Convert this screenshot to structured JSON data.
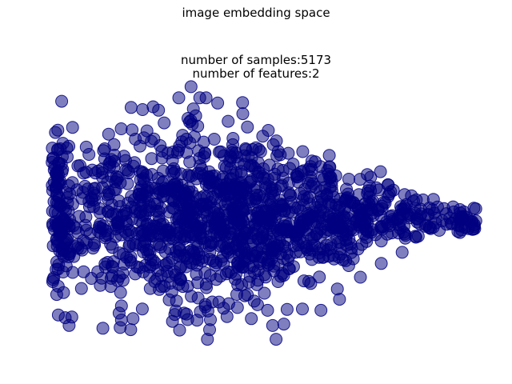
{
  "figure": {
    "suptitle": "image embedding space",
    "title_line1": "number of samples:5173",
    "title_line2": "number of features:2"
  },
  "colors": {
    "marker_fill": "#000080",
    "marker_opacity": 0.5
  },
  "chart_data": {
    "type": "scatter",
    "title": "number of samples:5173\n   number of features:2",
    "suptitle": "image embedding space",
    "n_samples": 5173,
    "n_features": 2,
    "axes_visible": false,
    "grid": false,
    "xlim": [
      -1.0,
      1.0
    ],
    "ylim": [
      -1.0,
      1.0
    ],
    "outliers": [
      {
        "x": -0.86,
        "y": -0.02
      },
      {
        "x": -0.83,
        "y": 0.02
      },
      {
        "x": -0.79,
        "y": 0.13
      },
      {
        "x": -0.75,
        "y": 0.17
      },
      {
        "x": -0.72,
        "y": 0.49
      },
      {
        "x": -0.7,
        "y": 0.11
      },
      {
        "x": -0.68,
        "y": 0.37
      },
      {
        "x": -0.66,
        "y": -0.77
      },
      {
        "x": -0.64,
        "y": 0.29
      },
      {
        "x": -0.62,
        "y": -0.39
      },
      {
        "x": -0.61,
        "y": 0.44
      },
      {
        "x": -0.59,
        "y": -0.66
      },
      {
        "x": -0.58,
        "y": -0.71
      },
      {
        "x": -0.56,
        "y": 0.38
      },
      {
        "x": -0.54,
        "y": -0.78
      },
      {
        "x": -0.53,
        "y": -0.7
      },
      {
        "x": -0.52,
        "y": 0.6
      },
      {
        "x": -0.5,
        "y": 0.55
      },
      {
        "x": -0.49,
        "y": -0.63
      },
      {
        "x": -0.47,
        "y": 0.66
      },
      {
        "x": -0.45,
        "y": 0.46
      },
      {
        "x": -0.42,
        "y": 0.81
      },
      {
        "x": -0.4,
        "y": 0.37
      },
      {
        "x": -0.38,
        "y": 0.5
      },
      {
        "x": -0.36,
        "y": -0.72
      },
      {
        "x": -0.35,
        "y": -0.67
      },
      {
        "x": -0.33,
        "y": 0.55
      },
      {
        "x": -0.31,
        "y": -0.66
      },
      {
        "x": -0.3,
        "y": 0.6
      },
      {
        "x": -0.28,
        "y": 0.98
      },
      {
        "x": -0.27,
        "y": 0.82
      },
      {
        "x": -0.26,
        "y": 0.77
      },
      {
        "x": -0.24,
        "y": -0.65
      },
      {
        "x": -0.22,
        "y": 0.5
      },
      {
        "x": -0.2,
        "y": -0.78
      },
      {
        "x": -0.18,
        "y": 0.6
      },
      {
        "x": -0.16,
        "y": -0.58
      },
      {
        "x": -0.12,
        "y": 0.73
      },
      {
        "x": -0.1,
        "y": 0.56
      },
      {
        "x": -0.08,
        "y": -0.62
      },
      {
        "x": -0.05,
        "y": 0.48
      },
      {
        "x": -0.02,
        "y": -0.7
      },
      {
        "x": 0.02,
        "y": 0.51
      },
      {
        "x": 0.05,
        "y": -0.64
      },
      {
        "x": 0.09,
        "y": 0.48
      },
      {
        "x": 0.12,
        "y": -0.74
      },
      {
        "x": 0.16,
        "y": 0.42
      },
      {
        "x": 0.2,
        "y": -0.63
      },
      {
        "x": 0.24,
        "y": 0.38
      },
      {
        "x": 0.28,
        "y": -0.64
      },
      {
        "x": 0.32,
        "y": 0.33
      },
      {
        "x": 0.36,
        "y": -0.56
      },
      {
        "x": 0.4,
        "y": 0.31
      },
      {
        "x": 0.45,
        "y": -0.4
      },
      {
        "x": 0.49,
        "y": 0.26
      },
      {
        "x": 0.54,
        "y": -0.3
      },
      {
        "x": 0.58,
        "y": 0.22
      },
      {
        "x": 0.63,
        "y": -0.22
      },
      {
        "x": 0.67,
        "y": 0.19
      },
      {
        "x": 0.72,
        "y": 0.16
      },
      {
        "x": 0.76,
        "y": 0.09
      },
      {
        "x": 0.79,
        "y": -0.06
      },
      {
        "x": 0.82,
        "y": 0.06
      },
      {
        "x": 0.86,
        "y": 0.02
      },
      {
        "x": 0.89,
        "y": 0.03
      },
      {
        "x": 0.91,
        "y": 0.03
      }
    ],
    "cloud": {
      "shape": "horizontal teardrop, dense core left of center, tapering to the right",
      "center": {
        "x": -0.15,
        "y": 0.02
      },
      "spread_x": 0.55,
      "spread_y": 0.34
    }
  }
}
